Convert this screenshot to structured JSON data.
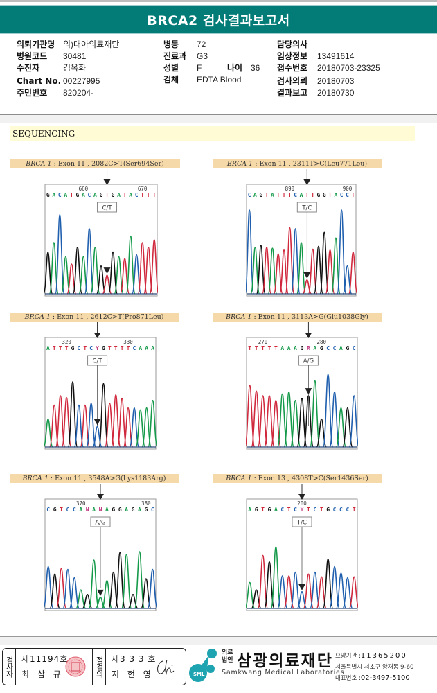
{
  "report": {
    "title": "BRCA2 검사결과보고서"
  },
  "patient_info": {
    "col1": [
      {
        "label": "의뢰기관명",
        "value": "의)대아의료재단"
      },
      {
        "label": "병원코드",
        "value": "30481"
      },
      {
        "label": "수진자",
        "value": "김옥화"
      },
      {
        "label": "Chart No.",
        "value": "00227995"
      },
      {
        "label": "주민번호",
        "value": "820204-"
      }
    ],
    "col2": [
      {
        "label": "병동",
        "value": "72"
      },
      {
        "label": "진료과",
        "value": "G3"
      },
      {
        "label": "성별",
        "value": "F"
      },
      {
        "label": "검체",
        "value": "EDTA Blood"
      }
    ],
    "age": {
      "label": "나이",
      "value": "36"
    },
    "col3": [
      {
        "label": "담당의사",
        "value": ""
      },
      {
        "label": "임상정보",
        "value": "13491614"
      },
      {
        "label": "접수번호",
        "value": "20180703-23325"
      },
      {
        "label": "검사의뢰",
        "value": "20180703"
      },
      {
        "label": "결과보고",
        "value": "20180730"
      }
    ]
  },
  "section": {
    "title": "SEQUENCING"
  },
  "colors": {
    "title_bar": "#037c78",
    "A": "#159a4a",
    "C": "#1f5fae",
    "G": "#111111",
    "T": "#d0283c",
    "label_bg": "#f6d9a8",
    "section_bg": "#fffbd5"
  },
  "chart_data": [
    {
      "type": "line",
      "title": "BRCA 1 : Exon 11 , 2082C>T(Ser694Ser)",
      "gene": "BRCA 1",
      "detail": ": Exon 11 , 2082C>T(Ser694Ser)",
      "call": "C/T",
      "sequence": "GACATGACAGTGATACTTT",
      "position_ticks": [
        {
          "label": "660",
          "index": 6
        },
        {
          "label": "670",
          "index": 16
        }
      ],
      "variant_index": 10,
      "peaks": [
        {
          "base": "G",
          "h": 0.45
        },
        {
          "base": "A",
          "h": 0.55
        },
        {
          "base": "C",
          "h": 0.85
        },
        {
          "base": "A",
          "h": 0.4
        },
        {
          "base": "T",
          "h": 0.32
        },
        {
          "base": "G",
          "h": 0.5
        },
        {
          "base": "A",
          "h": 0.4
        },
        {
          "base": "C",
          "h": 0.7
        },
        {
          "base": "A",
          "h": 0.5
        },
        {
          "base": "G",
          "h": 0.3
        },
        {
          "base": "T",
          "h": 0.2
        },
        {
          "base": "G",
          "h": 0.45
        },
        {
          "base": "A",
          "h": 0.4
        },
        {
          "base": "T",
          "h": 0.38
        },
        {
          "base": "A",
          "h": 0.62
        },
        {
          "base": "C",
          "h": 0.42
        },
        {
          "base": "T",
          "h": 0.55
        },
        {
          "base": "T",
          "h": 0.5
        },
        {
          "base": "T",
          "h": 0.58
        }
      ]
    },
    {
      "type": "line",
      "title": "BRCA 1 : Exon 11 , 2311T>C(Leu771Leu)",
      "gene": "BRCA 1",
      "detail": ": Exon 11 , 2311T>C(Leu771Leu)",
      "call": "T/C",
      "sequence": "CAGTATTTCATTGGTACCT",
      "position_ticks": [
        {
          "label": "890",
          "index": 7
        },
        {
          "label": "900",
          "index": 17
        }
      ],
      "variant_index": 10,
      "peaks": [
        {
          "base": "C",
          "h": 0.9
        },
        {
          "base": "A",
          "h": 0.5
        },
        {
          "base": "G",
          "h": 0.52
        },
        {
          "base": "T",
          "h": 0.5
        },
        {
          "base": "A",
          "h": 0.49
        },
        {
          "base": "T",
          "h": 0.43
        },
        {
          "base": "T",
          "h": 0.47
        },
        {
          "base": "T",
          "h": 0.71
        },
        {
          "base": "C",
          "h": 0.7
        },
        {
          "base": "A",
          "h": 0.55
        },
        {
          "base": "T",
          "h": 0.15
        },
        {
          "base": "T",
          "h": 0.48
        },
        {
          "base": "G",
          "h": 0.51
        },
        {
          "base": "G",
          "h": 0.66
        },
        {
          "base": "T",
          "h": 0.47
        },
        {
          "base": "A",
          "h": 0.6
        },
        {
          "base": "C",
          "h": 0.9
        },
        {
          "base": "C",
          "h": 0.3
        },
        {
          "base": "T",
          "h": 0.45
        }
      ]
    },
    {
      "type": "line",
      "title": "BRCA 1 : Exon 11 , 2612C>T(Pro871Leu)",
      "gene": "BRCA 1",
      "detail": ": Exon 11 , 2612C>T(Pro871Leu)",
      "call": "C/T",
      "sequence": "ATTTGCTCYGTTTTCAAA",
      "position_ticks": [
        {
          "label": "320",
          "index": 3
        },
        {
          "label": "330",
          "index": 13
        }
      ],
      "variant_index": 8,
      "peaks": [
        {
          "base": "A",
          "h": 0.3
        },
        {
          "base": "T",
          "h": 0.45
        },
        {
          "base": "T",
          "h": 0.55
        },
        {
          "base": "T",
          "h": 0.53
        },
        {
          "base": "G",
          "h": 0.7
        },
        {
          "base": "C",
          "h": 0.45
        },
        {
          "base": "T",
          "h": 0.45
        },
        {
          "base": "C",
          "h": 0.47
        },
        {
          "base": "C",
          "h": 0.22
        },
        {
          "base": "G",
          "h": 0.68
        },
        {
          "base": "T",
          "h": 0.47
        },
        {
          "base": "T",
          "h": 0.56
        },
        {
          "base": "T",
          "h": 0.52
        },
        {
          "base": "T",
          "h": 0.42
        },
        {
          "base": "C",
          "h": 0.42
        },
        {
          "base": "A",
          "h": 0.4
        },
        {
          "base": "A",
          "h": 0.42
        },
        {
          "base": "A",
          "h": 0.5
        }
      ]
    },
    {
      "type": "line",
      "title": "BRCA 1 : Exon 11 , 3113A>G(Glu1038Gly)",
      "gene": "BRCA 1",
      "detail": ": Exon 11 , 3113A>G(Glu1038Gly)",
      "call": "A/G",
      "sequence": "TTTTTAAAGRAGCCAGC",
      "position_ticks": [
        {
          "label": "270",
          "index": 2
        },
        {
          "label": "280",
          "index": 11
        }
      ],
      "variant_index": 9,
      "peaks": [
        {
          "base": "T",
          "h": 0.66
        },
        {
          "base": "T",
          "h": 0.6
        },
        {
          "base": "T",
          "h": 0.55
        },
        {
          "base": "T",
          "h": 0.55
        },
        {
          "base": "T",
          "h": 0.5
        },
        {
          "base": "A",
          "h": 0.57
        },
        {
          "base": "A",
          "h": 0.59
        },
        {
          "base": "A",
          "h": 0.5
        },
        {
          "base": "G",
          "h": 0.52
        },
        {
          "base": "G",
          "h": 0.55
        },
        {
          "base": "A",
          "h": 0.71
        },
        {
          "base": "G",
          "h": 0.3
        },
        {
          "base": "C",
          "h": 0.78
        },
        {
          "base": "C",
          "h": 0.59
        },
        {
          "base": "A",
          "h": 0.42
        },
        {
          "base": "G",
          "h": 0.42
        },
        {
          "base": "C",
          "h": 0.55
        }
      ]
    },
    {
      "type": "line",
      "title": "BRCA 1 : Exon 11 , 3548A>G(Lys1183Arg)",
      "gene": "BRCA 1",
      "detail": ": Exon 11 , 3548A>G(Lys1183Arg)",
      "call": "A/G",
      "sequence": "CGTCCANANAGGAGAGC",
      "position_ticks": [
        {
          "label": "370",
          "index": 5
        },
        {
          "label": "380",
          "index": 15
        }
      ],
      "variant_index": 8,
      "peaks": [
        {
          "base": "C",
          "h": 0.45
        },
        {
          "base": "G",
          "h": 0.37
        },
        {
          "base": "T",
          "h": 0.43
        },
        {
          "base": "C",
          "h": 0.42
        },
        {
          "base": "C",
          "h": 0.33
        },
        {
          "base": "A",
          "h": 0.2
        },
        {
          "base": "G",
          "h": 0.15
        },
        {
          "base": "A",
          "h": 0.52
        },
        {
          "base": "A",
          "h": 0.12
        },
        {
          "base": "A",
          "h": 0.3
        },
        {
          "base": "G",
          "h": 0.39
        },
        {
          "base": "G",
          "h": 0.6
        },
        {
          "base": "A",
          "h": 0.58
        },
        {
          "base": "G",
          "h": 0.15
        },
        {
          "base": "A",
          "h": 0.61
        },
        {
          "base": "G",
          "h": 0.32
        },
        {
          "base": "C",
          "h": 0.42
        }
      ]
    },
    {
      "type": "line",
      "title": "BRCA 1 : Exon 13 , 4308T>C(Ser1436Ser)",
      "gene": "BRCA 1",
      "detail": ": Exon 13 , 4308T>C(Ser1436Ser)",
      "call": "T/C",
      "sequence": "AGTGACTCYTCTGCCCT",
      "position_ticks": [
        {
          "label": "200",
          "index": 8
        }
      ],
      "variant_index": 8,
      "peaks": [
        {
          "base": "A",
          "h": 0.28
        },
        {
          "base": "G",
          "h": 0.2
        },
        {
          "base": "T",
          "h": 0.57
        },
        {
          "base": "G",
          "h": 0.5
        },
        {
          "base": "A",
          "h": 0.66
        },
        {
          "base": "C",
          "h": 0.35
        },
        {
          "base": "T",
          "h": 0.35
        },
        {
          "base": "C",
          "h": 0.39
        },
        {
          "base": "C",
          "h": 0.18
        },
        {
          "base": "T",
          "h": 0.37
        },
        {
          "base": "C",
          "h": 0.39
        },
        {
          "base": "T",
          "h": 0.34
        },
        {
          "base": "G",
          "h": 0.53
        },
        {
          "base": "C",
          "h": 0.45
        },
        {
          "base": "C",
          "h": 0.38
        },
        {
          "base": "C",
          "h": 0.33
        },
        {
          "base": "T",
          "h": 0.34
        }
      ]
    }
  ],
  "signatures": {
    "tester": {
      "role": "검사자",
      "number": "제11194호",
      "name": "최 삼 규"
    },
    "reviewer": {
      "role": "점검의",
      "number": "제3 3 3 호",
      "name": "지 현 영"
    }
  },
  "organization": {
    "prefix_top": "의료",
    "prefix_bottom": "법인",
    "name": "삼광의료재단",
    "english": "Samkwang Medical Laboratories",
    "logo_text": "SML",
    "code_label": "요양기관 :",
    "code": "11365200",
    "address": "서울특별시 서초구 양재동 9-60",
    "phone_label": "대표번호 :",
    "phone": "02-3497-5100"
  }
}
